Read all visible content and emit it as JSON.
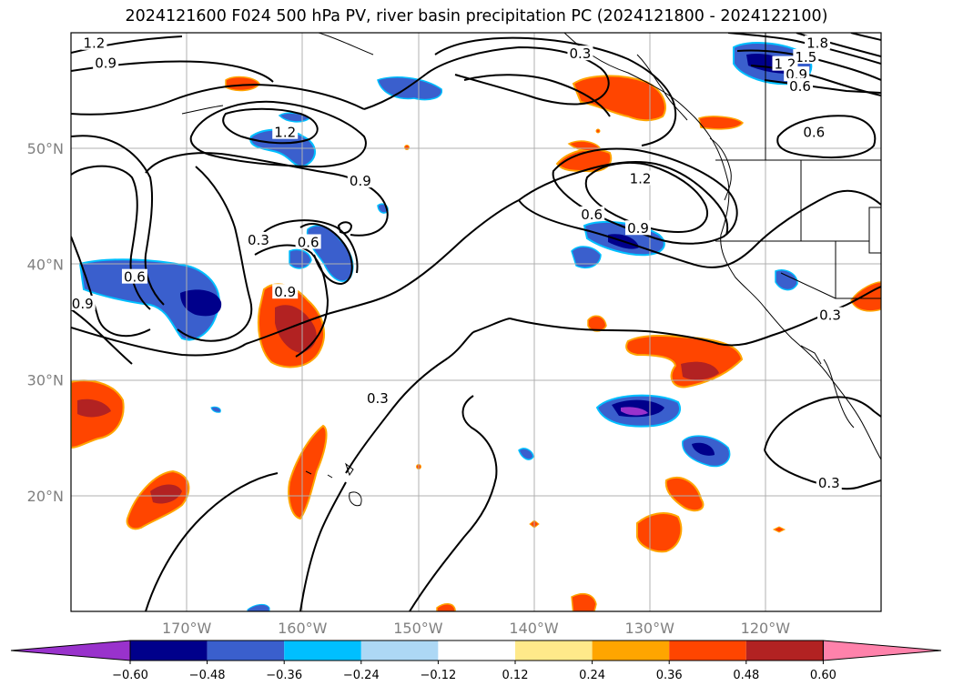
{
  "title": "2024121600 F024 500 hPa PV, river basin precipitation PC (2024121800 - 2024122100)",
  "map": {
    "lon_range": [
      -180,
      -110
    ],
    "lat_range": [
      10,
      60
    ],
    "lat_ticks": [
      {
        "value": 20,
        "label": "20°N"
      },
      {
        "value": 30,
        "label": "30°N"
      },
      {
        "value": 40,
        "label": "40°N"
      },
      {
        "value": 50,
        "label": "50°N"
      }
    ],
    "lon_ticks": [
      {
        "value": -170,
        "label": "170°W"
      },
      {
        "value": -160,
        "label": "160°W"
      },
      {
        "value": -150,
        "label": "150°W"
      },
      {
        "value": -140,
        "label": "140°W"
      },
      {
        "value": -130,
        "label": "130°W"
      },
      {
        "value": -120,
        "label": "120°W"
      }
    ],
    "grid": true,
    "contour_labels": [
      {
        "text": "1.2",
        "lon": -178,
        "lat": 59
      },
      {
        "text": "0.9",
        "lon": -177,
        "lat": 57.3
      },
      {
        "text": "1.2",
        "lon": -161.5,
        "lat": 51.3
      },
      {
        "text": "0.9",
        "lon": -155,
        "lat": 47.1
      },
      {
        "text": "0.3",
        "lon": -163.8,
        "lat": 42
      },
      {
        "text": "0.6",
        "lon": -159.5,
        "lat": 41.8
      },
      {
        "text": "0.9",
        "lon": -179,
        "lat": 36.5
      },
      {
        "text": "0.6",
        "lon": -174.5,
        "lat": 38.8
      },
      {
        "text": "0.9",
        "lon": -161.5,
        "lat": 37.5
      },
      {
        "text": "0.3",
        "lon": -153.5,
        "lat": 28.3
      },
      {
        "text": "0.3",
        "lon": -136,
        "lat": 58.1
      },
      {
        "text": "1.2",
        "lon": -130.8,
        "lat": 47.3
      },
      {
        "text": "0.6",
        "lon": -135,
        "lat": 44.2
      },
      {
        "text": "0.9",
        "lon": -131,
        "lat": 43
      },
      {
        "text": "1.8",
        "lon": -115.5,
        "lat": 59
      },
      {
        "text": "1.5",
        "lon": -116.5,
        "lat": 57.8
      },
      {
        "text": "1.2",
        "lon": -118.3,
        "lat": 57.2
      },
      {
        "text": "0.9",
        "lon": -117.3,
        "lat": 56.3
      },
      {
        "text": "0.6",
        "lon": -117,
        "lat": 55.3
      },
      {
        "text": "0.6",
        "lon": -115.8,
        "lat": 51.3
      },
      {
        "text": "0.3",
        "lon": -114.4,
        "lat": 35.5
      },
      {
        "text": "0.3",
        "lon": -114.5,
        "lat": 21
      }
    ]
  },
  "colorbar": {
    "ticks": [
      "−0.60",
      "−0.48",
      "−0.36",
      "−0.24",
      "−0.12",
      "0.12",
      "0.24",
      "0.36",
      "0.48",
      "0.60"
    ],
    "colors": [
      "#9932cc",
      "#00008b",
      "#3a5fcd",
      "#00bfff",
      "#add8f5",
      "#ffffff",
      "#ffe98a",
      "#ffa500",
      "#ff4500",
      "#b22222",
      "#ff82ab"
    ]
  }
}
